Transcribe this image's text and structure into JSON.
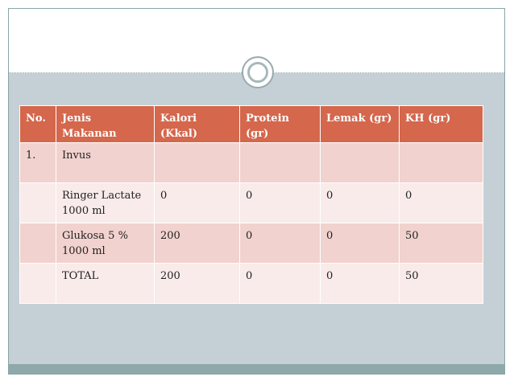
{
  "table": {
    "headers": [
      "No.",
      "Jenis Makanan",
      "Kalori (Kkal)",
      "Protein (gr)",
      "Lemak (gr)",
      "KH (gr)"
    ],
    "rows": [
      [
        "1.",
        "Invus",
        "",
        "",
        "",
        ""
      ],
      [
        "",
        "Ringer Lactate 1000 ml",
        "0",
        "0",
        "0",
        "0"
      ],
      [
        "",
        "Glukosa 5 % 1000 ml",
        "200",
        "0",
        "0",
        "50"
      ],
      [
        "",
        "TOTAL",
        "200",
        "0",
        "0",
        "50"
      ]
    ]
  },
  "colors": {
    "header_bg": "#d4674c",
    "row_bg": "#f1d2ce",
    "row_alt_bg": "#f8ebea",
    "slide_bg": "#c4d0d6",
    "bottom_bar": "#8ea8ab"
  }
}
